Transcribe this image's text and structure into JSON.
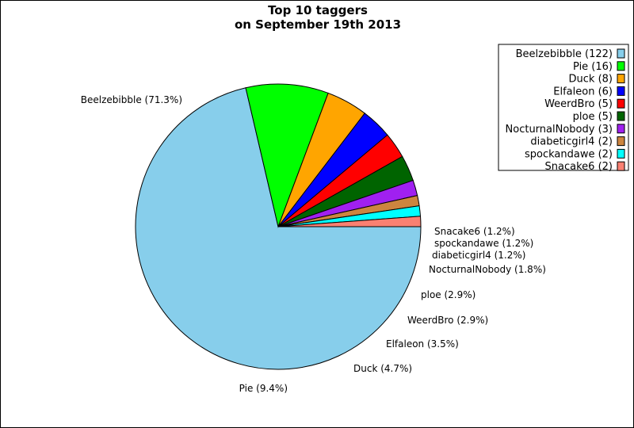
{
  "chart_data": {
    "type": "pie",
    "title": "Top 10 taggers",
    "subtitle": "on September 19th 2013",
    "categories": [
      "Beelzebibble",
      "Pie",
      "Duck",
      "Elfaleon",
      "WeerdBro",
      "ploe",
      "NocturnalNobody",
      "diabeticgirl4",
      "spockandawe",
      "Snacake6"
    ],
    "values": [
      122,
      16,
      8,
      6,
      5,
      5,
      3,
      2,
      2,
      2
    ],
    "percent_labels": [
      "Beelzebibble (71.3%)",
      "Pie (9.4%)",
      "Duck (4.7%)",
      "Elfaleon (3.5%)",
      "WeerdBro (2.9%)",
      "ploe (2.9%)",
      "NocturnalNobody (1.8%)",
      "diabeticgirl4 (1.2%)",
      "spockandawe (1.2%)",
      "Snacake6 (1.2%)"
    ],
    "legend_labels": [
      "Beelzebibble (122)",
      "Pie (16)",
      "Duck (8)",
      "Elfaleon (6)",
      "WeerdBro (5)",
      "ploe (5)",
      "NocturnalNobody (3)",
      "diabeticgirl4 (2)",
      "spockandawe (2)",
      "Snacake6 (2)"
    ],
    "colors": [
      "#87ceeb",
      "#00ff00",
      "#ffa500",
      "#0000ff",
      "#ff0000",
      "#006400",
      "#a020f0",
      "#cd853f",
      "#00ffff",
      "#fa8072"
    ],
    "start_angle_deg": 0,
    "direction": "clockwise-on-screen",
    "legend_position": "top-right"
  }
}
